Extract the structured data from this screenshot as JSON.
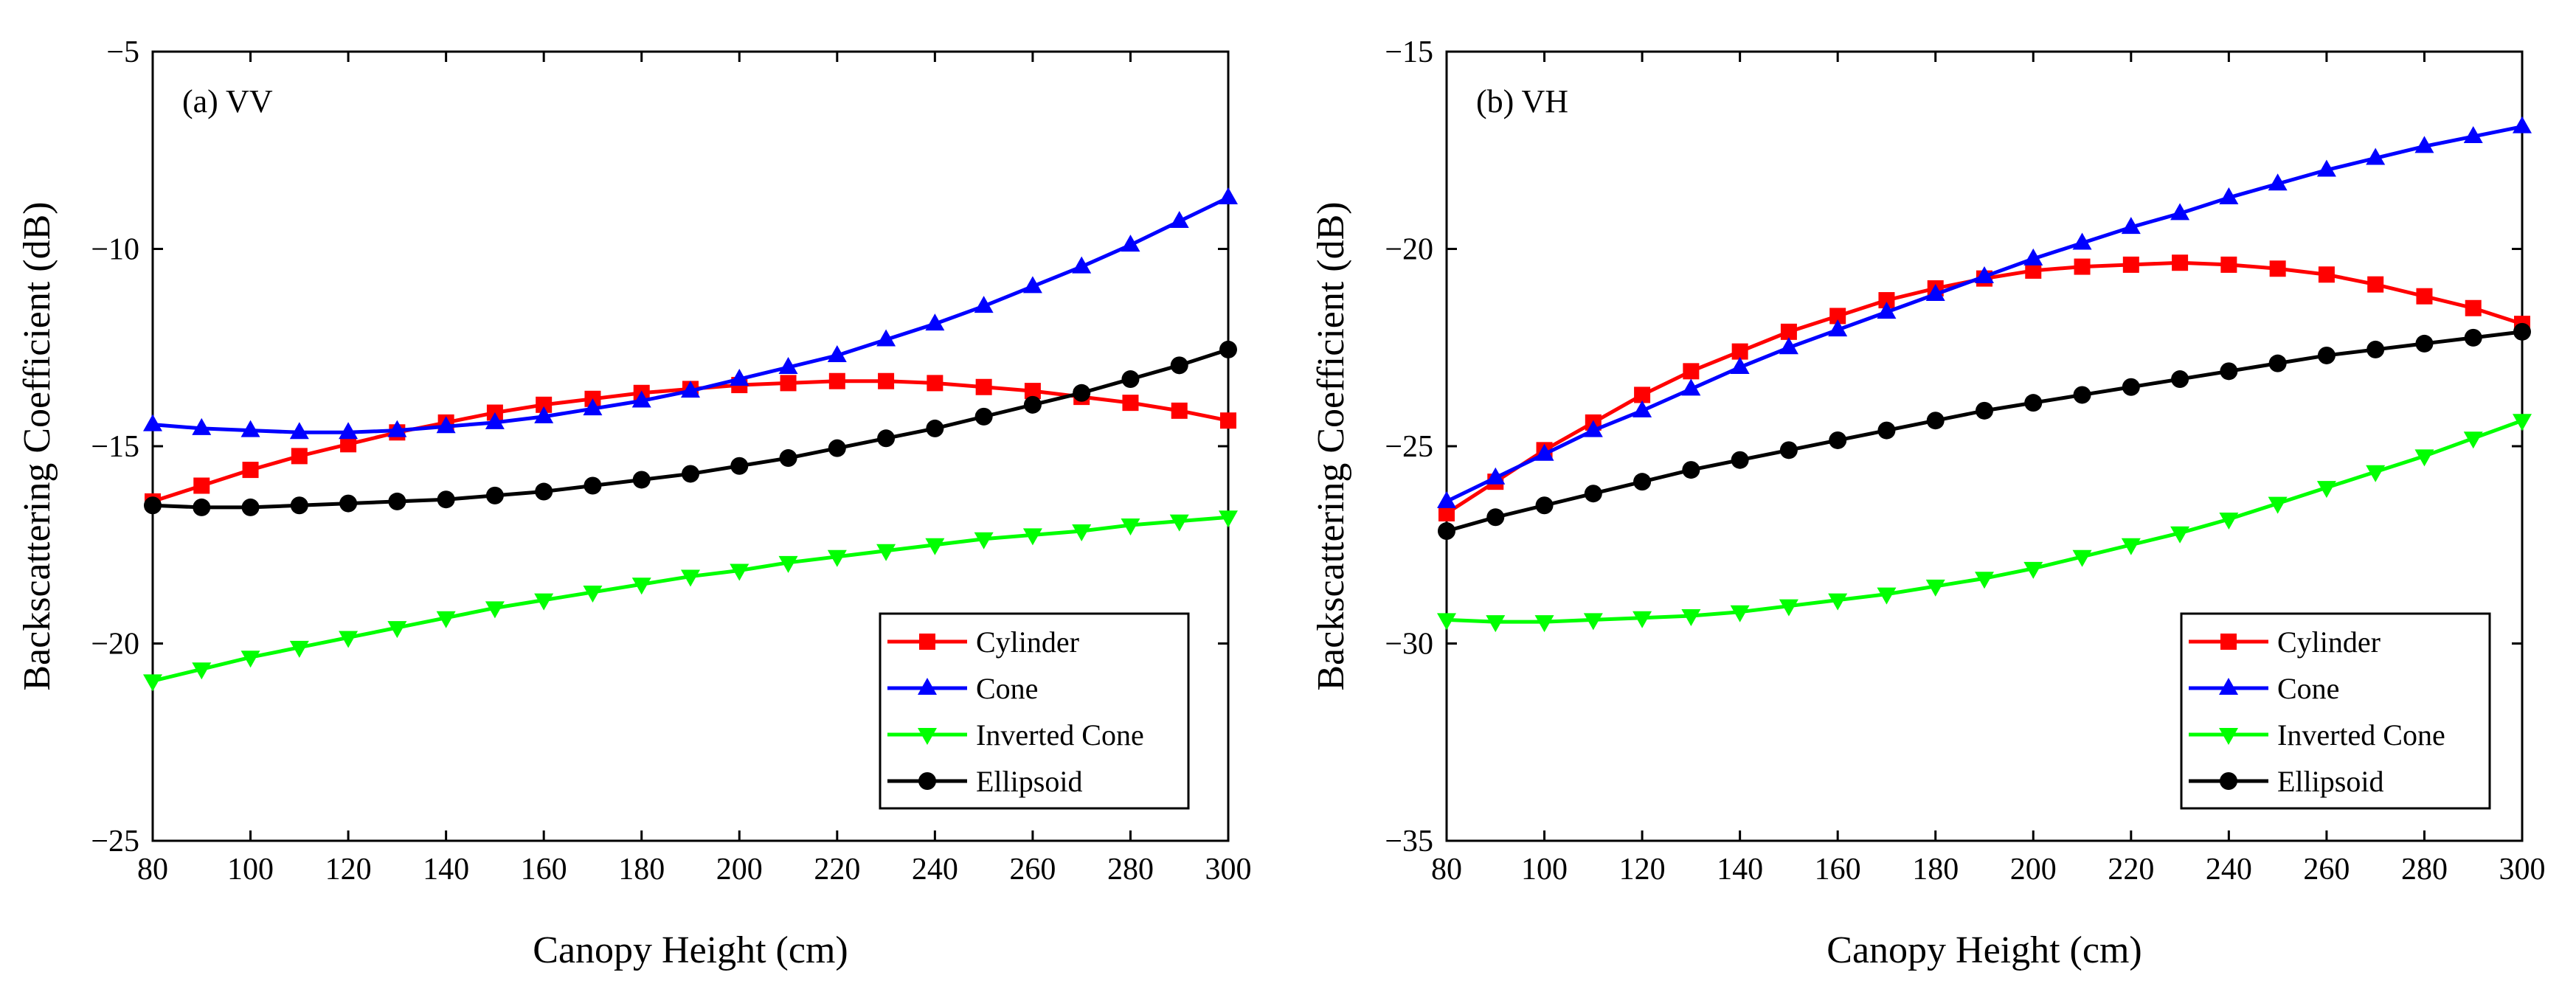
{
  "chart_data": [
    {
      "type": "line",
      "panel_label": "(a) VV",
      "xlabel": "Canopy Height (cm)",
      "ylabel": "Backscattering Coefficient (dB)",
      "xlim": [
        80,
        300
      ],
      "ylim": [
        -25,
        -5
      ],
      "xticks": [
        80,
        100,
        120,
        140,
        160,
        180,
        200,
        220,
        240,
        260,
        280,
        300
      ],
      "yticks": [
        -5,
        -10,
        -15,
        -20,
        -25
      ],
      "ytick_labels": [
        "−5",
        "−10",
        "−15",
        "−20",
        "−25"
      ],
      "x": [
        80,
        90,
        100,
        110,
        120,
        130,
        140,
        150,
        160,
        170,
        180,
        190,
        200,
        210,
        220,
        230,
        240,
        250,
        260,
        270,
        280,
        290,
        300
      ],
      "legend_position": "bottom-right",
      "series": [
        {
          "name": "Cylinder",
          "color": "#ff0000",
          "marker": "square",
          "values": [
            -16.4,
            -16.0,
            -15.6,
            -15.25,
            -14.95,
            -14.65,
            -14.4,
            -14.15,
            -13.95,
            -13.8,
            -13.65,
            -13.55,
            -13.45,
            -13.4,
            -13.35,
            -13.35,
            -13.4,
            -13.5,
            -13.6,
            -13.75,
            -13.9,
            -14.1,
            -14.35
          ]
        },
        {
          "name": "Cone",
          "color": "#0000ff",
          "marker": "triangle-up",
          "values": [
            -14.45,
            -14.55,
            -14.6,
            -14.65,
            -14.65,
            -14.6,
            -14.5,
            -14.4,
            -14.25,
            -14.05,
            -13.85,
            -13.6,
            -13.3,
            -13.0,
            -12.7,
            -12.3,
            -11.9,
            -11.45,
            -10.95,
            -10.45,
            -9.9,
            -9.3,
            -8.7
          ]
        },
        {
          "name": "Inverted Cone",
          "color": "#00ff00",
          "marker": "triangle-down",
          "values": [
            -20.95,
            -20.65,
            -20.35,
            -20.1,
            -19.85,
            -19.6,
            -19.35,
            -19.1,
            -18.9,
            -18.7,
            -18.5,
            -18.3,
            -18.15,
            -17.95,
            -17.8,
            -17.65,
            -17.5,
            -17.35,
            -17.25,
            -17.15,
            -17.0,
            -16.9,
            -16.8
          ]
        },
        {
          "name": "Ellipsoid",
          "color": "#000000",
          "marker": "circle",
          "values": [
            -16.5,
            -16.55,
            -16.55,
            -16.5,
            -16.45,
            -16.4,
            -16.35,
            -16.25,
            -16.15,
            -16.0,
            -15.85,
            -15.7,
            -15.5,
            -15.3,
            -15.05,
            -14.8,
            -14.55,
            -14.25,
            -13.95,
            -13.65,
            -13.3,
            -12.95,
            -12.55
          ]
        }
      ]
    },
    {
      "type": "line",
      "panel_label": "(b) VH",
      "xlabel": "Canopy Height (cm)",
      "ylabel": "Backscattering Coefficient (dB)",
      "xlim": [
        80,
        300
      ],
      "ylim": [
        -35,
        -15
      ],
      "xticks": [
        80,
        100,
        120,
        140,
        160,
        180,
        200,
        220,
        240,
        260,
        280,
        300
      ],
      "yticks": [
        -15,
        -20,
        -25,
        -30,
        -35
      ],
      "ytick_labels": [
        "−15",
        "−20",
        "−25",
        "−30",
        "−35"
      ],
      "x": [
        80,
        90,
        100,
        110,
        120,
        130,
        140,
        150,
        160,
        170,
        180,
        190,
        200,
        210,
        220,
        230,
        240,
        250,
        260,
        270,
        280,
        290,
        300
      ],
      "legend_position": "bottom-right",
      "series": [
        {
          "name": "Cylinder",
          "color": "#ff0000",
          "marker": "square",
          "values": [
            -26.7,
            -25.9,
            -25.1,
            -24.4,
            -23.7,
            -23.1,
            -22.6,
            -22.1,
            -21.7,
            -21.3,
            -21.0,
            -20.75,
            -20.55,
            -20.45,
            -20.4,
            -20.35,
            -20.4,
            -20.5,
            -20.65,
            -20.9,
            -21.2,
            -21.5,
            -21.9
          ]
        },
        {
          "name": "Cone",
          "color": "#0000ff",
          "marker": "triangle-up",
          "values": [
            -26.4,
            -25.8,
            -25.2,
            -24.6,
            -24.1,
            -23.55,
            -23.0,
            -22.5,
            -22.05,
            -21.6,
            -21.15,
            -20.7,
            -20.25,
            -19.85,
            -19.45,
            -19.1,
            -18.7,
            -18.35,
            -18.0,
            -17.7,
            -17.4,
            -17.15,
            -16.9
          ]
        },
        {
          "name": "Inverted Cone",
          "color": "#00ff00",
          "marker": "triangle-down",
          "values": [
            -29.4,
            -29.45,
            -29.45,
            -29.4,
            -29.35,
            -29.3,
            -29.2,
            -29.05,
            -28.9,
            -28.75,
            -28.55,
            -28.35,
            -28.1,
            -27.8,
            -27.5,
            -27.2,
            -26.85,
            -26.45,
            -26.05,
            -25.65,
            -25.25,
            -24.8,
            -24.35
          ]
        },
        {
          "name": "Ellipsoid",
          "color": "#000000",
          "marker": "circle",
          "values": [
            -27.15,
            -26.8,
            -26.5,
            -26.2,
            -25.9,
            -25.6,
            -25.35,
            -25.1,
            -24.85,
            -24.6,
            -24.35,
            -24.1,
            -23.9,
            -23.7,
            -23.5,
            -23.3,
            -23.1,
            -22.9,
            -22.7,
            -22.55,
            -22.4,
            -22.25,
            -22.1
          ]
        }
      ]
    }
  ]
}
